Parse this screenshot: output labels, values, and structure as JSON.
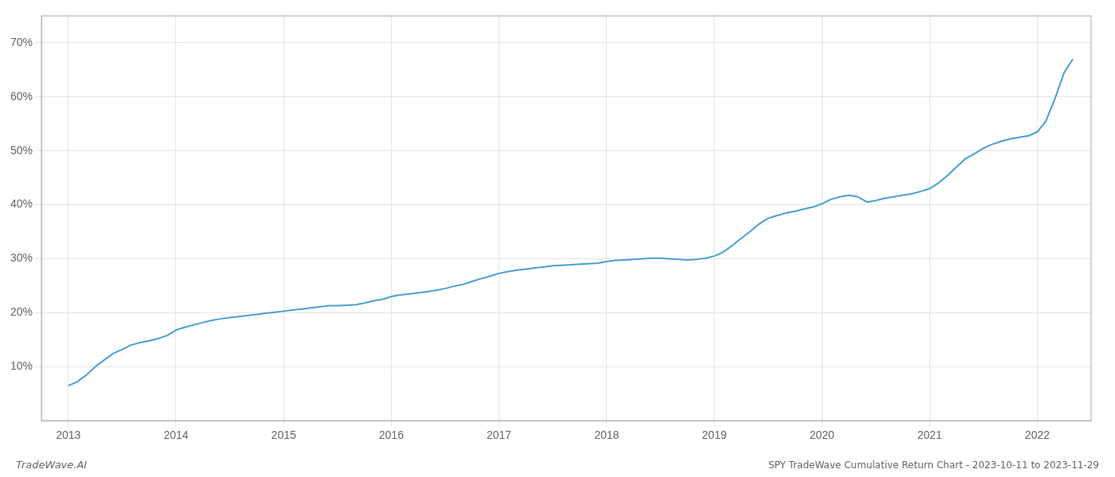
{
  "chart_data": {
    "type": "line",
    "title": "SPY TradeWave Cumulative Return Chart - 2023-10-11 to 2023-11-29",
    "annotations": [
      "TradeWave.AI"
    ],
    "color": "#4a9fd4",
    "grid": true,
    "x": [
      2013.0,
      2013.08,
      2013.17,
      2013.25,
      2013.33,
      2013.42,
      2013.5,
      2013.58,
      2013.67,
      2013.75,
      2013.83,
      2013.92,
      2014.0,
      2014.08,
      2014.17,
      2014.25,
      2014.33,
      2014.42,
      2014.5,
      2014.58,
      2014.67,
      2014.75,
      2014.83,
      2014.92,
      2015.0,
      2015.08,
      2015.17,
      2015.25,
      2015.33,
      2015.42,
      2015.5,
      2015.58,
      2015.67,
      2015.75,
      2015.83,
      2015.92,
      2016.0,
      2016.08,
      2016.17,
      2016.25,
      2016.33,
      2016.42,
      2016.5,
      2016.58,
      2016.67,
      2016.75,
      2016.83,
      2016.92,
      2017.0,
      2017.08,
      2017.17,
      2017.25,
      2017.33,
      2017.42,
      2017.5,
      2017.58,
      2017.67,
      2017.75,
      2017.83,
      2017.92,
      2018.0,
      2018.08,
      2018.17,
      2018.25,
      2018.33,
      2018.42,
      2018.5,
      2018.58,
      2018.67,
      2018.75,
      2018.83,
      2018.92,
      2019.0,
      2019.08,
      2019.17,
      2019.25,
      2019.33,
      2019.42,
      2019.5,
      2019.58,
      2019.67,
      2019.75,
      2019.83,
      2019.92,
      2020.0,
      2020.08,
      2020.17,
      2020.25,
      2020.33,
      2020.42,
      2020.5,
      2020.58,
      2020.67,
      2020.75,
      2020.83,
      2020.92,
      2021.0,
      2021.08,
      2021.17,
      2021.25,
      2021.33,
      2021.42,
      2021.5,
      2021.58,
      2021.67,
      2021.75,
      2021.83,
      2021.92,
      2022.0,
      2022.08,
      2022.17,
      2022.25,
      2022.33
    ],
    "values": [
      6.5,
      7.2,
      8.5,
      10.0,
      11.2,
      12.5,
      13.2,
      14.0,
      14.5,
      14.8,
      15.2,
      15.8,
      16.8,
      17.3,
      17.8,
      18.2,
      18.6,
      18.9,
      19.1,
      19.3,
      19.5,
      19.7,
      19.9,
      20.1,
      20.3,
      20.5,
      20.7,
      20.9,
      21.1,
      21.3,
      21.3,
      21.4,
      21.5,
      21.8,
      22.2,
      22.5,
      23.0,
      23.3,
      23.5,
      23.7,
      23.9,
      24.2,
      24.5,
      24.9,
      25.3,
      25.8,
      26.3,
      26.8,
      27.3,
      27.6,
      27.9,
      28.1,
      28.3,
      28.5,
      28.7,
      28.8,
      28.9,
      29.0,
      29.1,
      29.2,
      29.5,
      29.7,
      29.8,
      29.9,
      30.0,
      30.1,
      30.1,
      30.0,
      29.9,
      29.8,
      29.9,
      30.1,
      30.5,
      31.2,
      32.5,
      33.8,
      35.0,
      36.5,
      37.5,
      38.0,
      38.5,
      38.8,
      39.2,
      39.6,
      40.2,
      41.0,
      41.5,
      41.8,
      41.5,
      40.5,
      40.8,
      41.2,
      41.5,
      41.8,
      42.0,
      42.5,
      43.0,
      44.0,
      45.5,
      47.0,
      48.5,
      49.5,
      50.5,
      51.2,
      51.8,
      52.2,
      52.5,
      52.8,
      53.5,
      55.5,
      60.0,
      64.5,
      67.0
    ],
    "xlim": [
      2012.75,
      2022.5
    ],
    "xticks": [
      2013,
      2014,
      2015,
      2016,
      2017,
      2018,
      2019,
      2020,
      2021,
      2022
    ],
    "ylim": [
      0,
      75
    ],
    "yticks": [
      {
        "value": 10,
        "label": "10%"
      },
      {
        "value": 20,
        "label": "20%"
      },
      {
        "value": 30,
        "label": "30%"
      },
      {
        "value": 40,
        "label": "40%"
      },
      {
        "value": 50,
        "label": "50%"
      },
      {
        "value": 60,
        "label": "60%"
      },
      {
        "value": 70,
        "label": "70%"
      }
    ]
  }
}
